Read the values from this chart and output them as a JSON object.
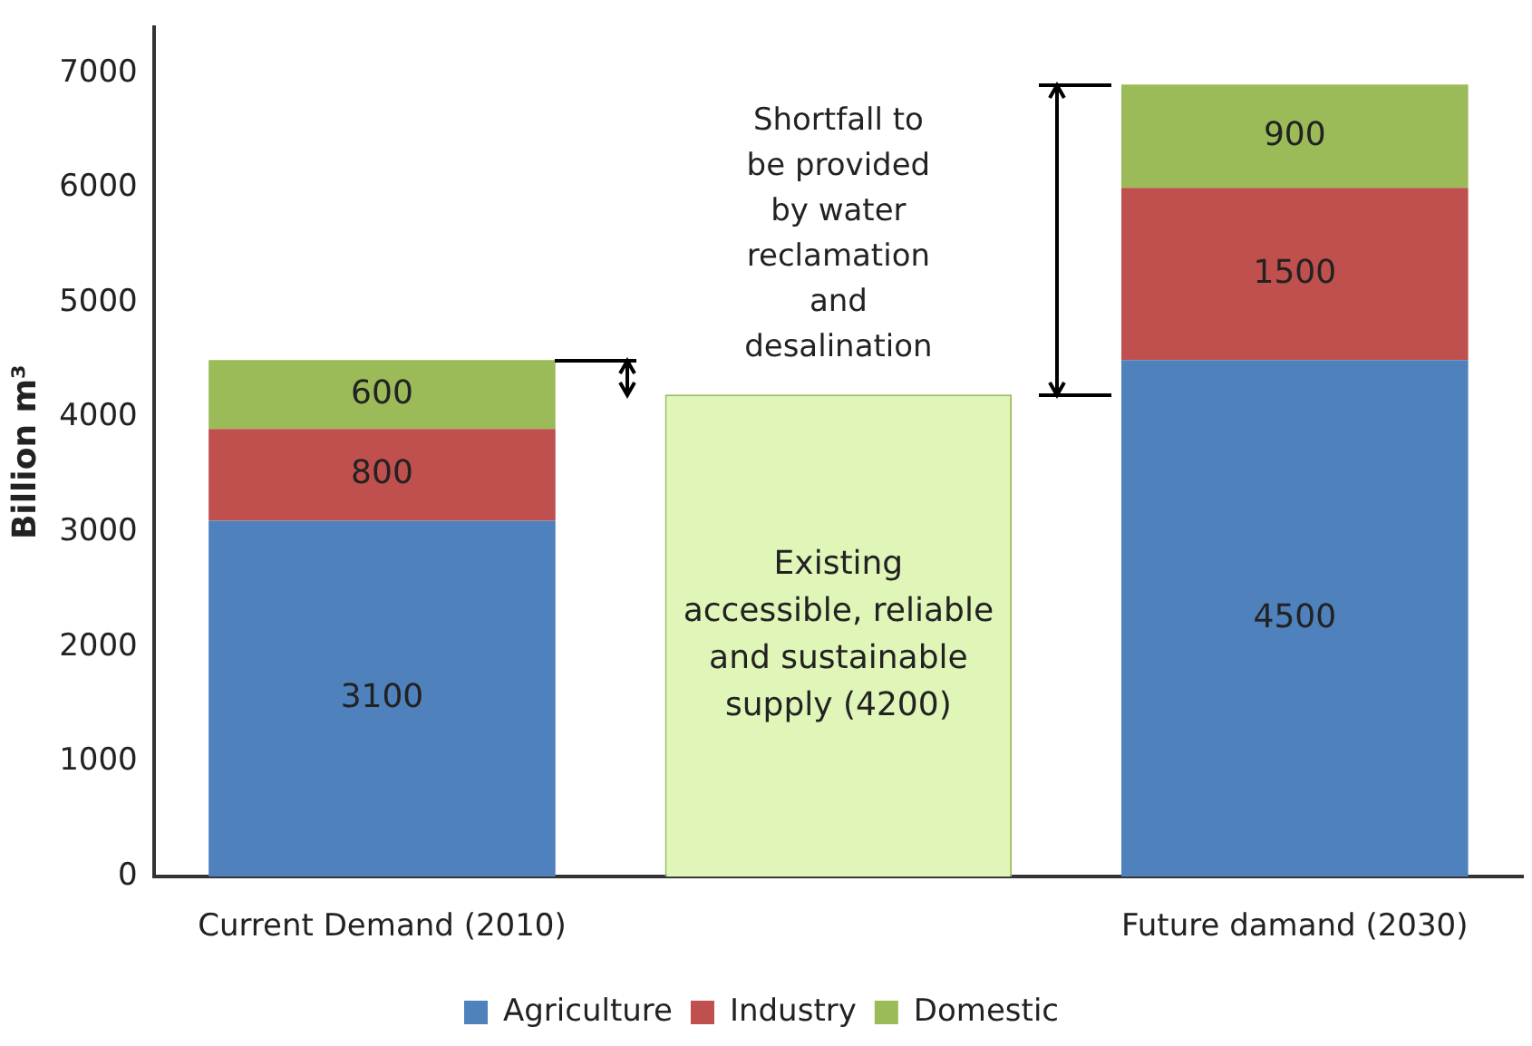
{
  "chart_data": {
    "type": "bar",
    "stacked": true,
    "ylabel": "Billion m³",
    "categories": [
      "Current Demand (2010)",
      null,
      "Future damand (2030)"
    ],
    "series": [
      {
        "name": "Agriculture",
        "color": "#4f81bd",
        "values": [
          3100,
          null,
          4500
        ],
        "value_labels": [
          "3100",
          null,
          "4500"
        ]
      },
      {
        "name": "Industry",
        "color": "#c0504d",
        "values": [
          800,
          null,
          1500
        ],
        "value_labels": [
          "800",
          null,
          "1500"
        ]
      },
      {
        "name": "Domestic",
        "color": "#9bbb59",
        "values": [
          600,
          null,
          900
        ],
        "value_labels": [
          "600",
          null,
          "900"
        ]
      },
      {
        "color": "#e0f5b8",
        "values": [
          null,
          4200,
          null
        ],
        "value_labels": [
          null,
          "Existing accessible, reliable and sustainable supply (4200)",
          null
        ]
      }
    ],
    "ylim": [
      0,
      7400
    ],
    "yticks": [
      0,
      1000,
      2000,
      3000,
      4000,
      5000,
      6000,
      7000
    ],
    "grid": false,
    "legend": "bottom",
    "annotations": [
      "Shortfall to be provided by water reclamation and desalination"
    ]
  }
}
